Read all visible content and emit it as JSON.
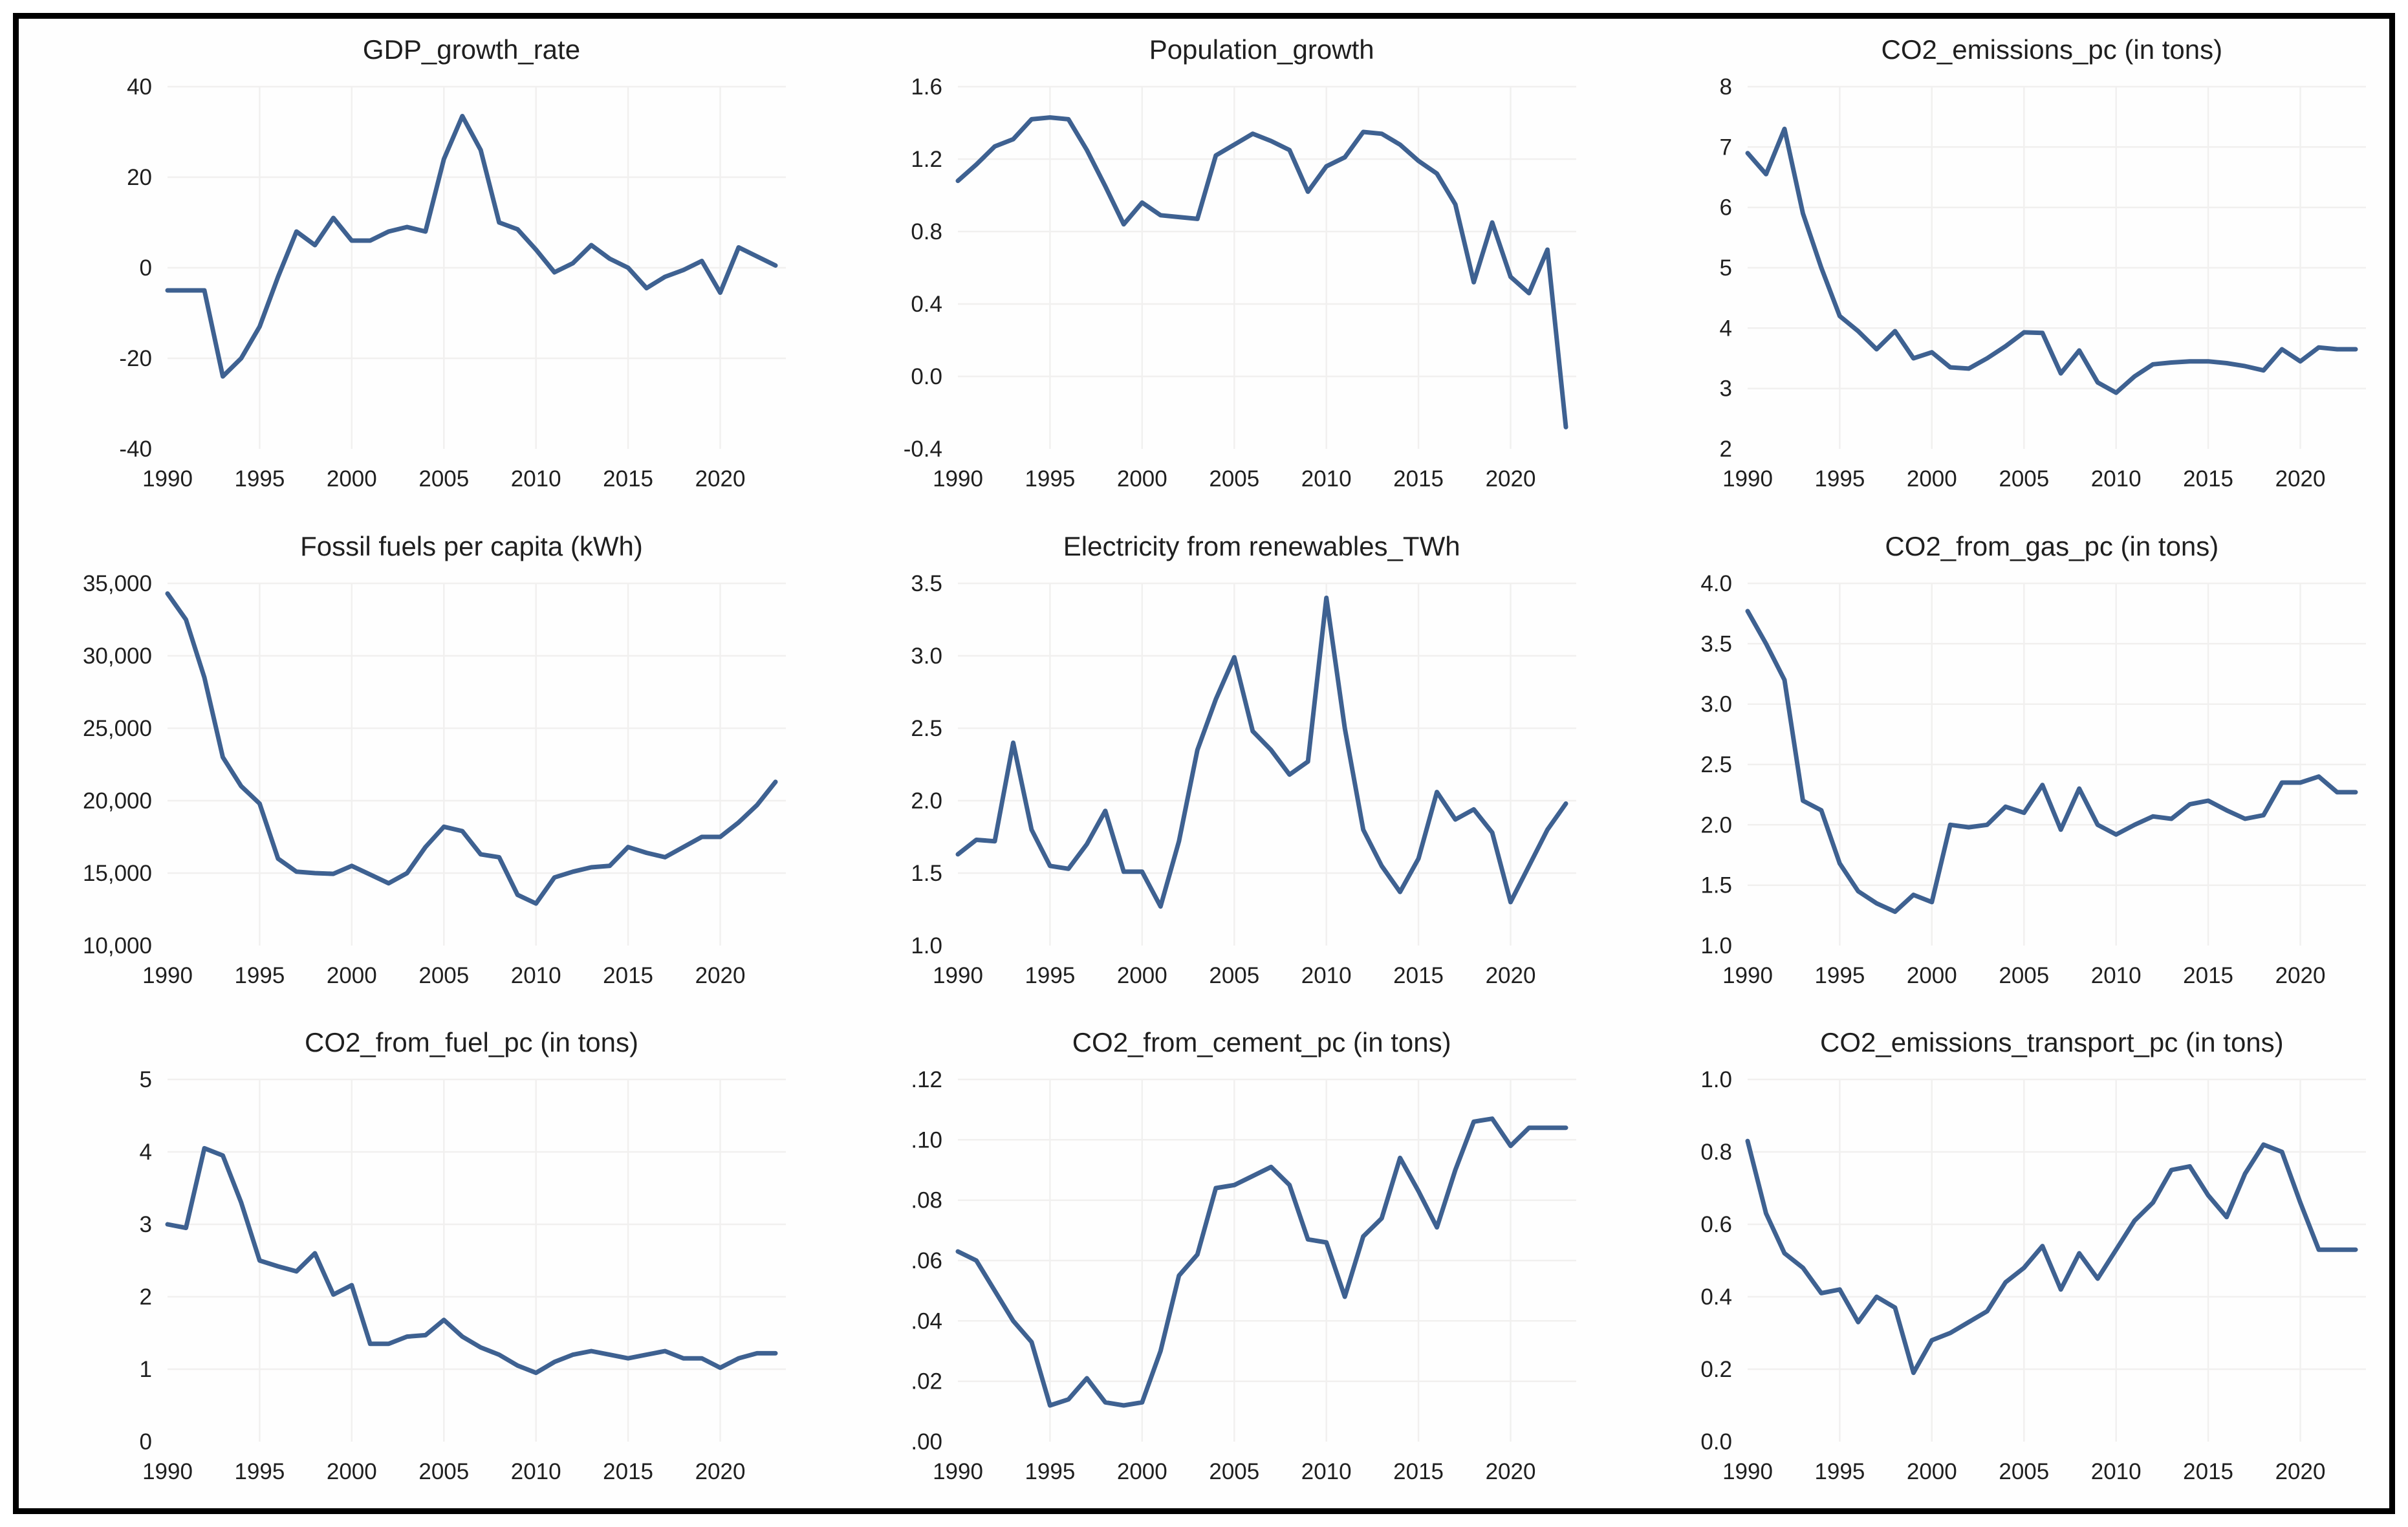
{
  "figure": {
    "background": "#fefefe",
    "frame_border_color": "#000000",
    "line_color": "#3e6191",
    "grid_color": "#f1f0ef",
    "text_color": "#1f1f1f",
    "layout": "3x3 small multiples, line charts, no legend, no axis lines"
  },
  "years": [
    1990,
    1991,
    1992,
    1993,
    1994,
    1995,
    1996,
    1997,
    1998,
    1999,
    2000,
    2001,
    2002,
    2003,
    2004,
    2005,
    2006,
    2007,
    2008,
    2009,
    2010,
    2011,
    2012,
    2013,
    2014,
    2015,
    2016,
    2017,
    2018,
    2019,
    2020,
    2021,
    2022,
    2023
  ],
  "x_ticks": [
    1990,
    1995,
    2000,
    2005,
    2010,
    2015,
    2020
  ],
  "chart_data": [
    {
      "type": "line",
      "title": "GDP_growth_rate",
      "ylim": [
        -40,
        40
      ],
      "yticks": [
        {
          "v": -40,
          "label": "-40"
        },
        {
          "v": -20,
          "label": "-20"
        },
        {
          "v": 0,
          "label": "0"
        },
        {
          "v": 20,
          "label": "20"
        },
        {
          "v": 40,
          "label": "40"
        }
      ],
      "values": [
        -5,
        -5,
        -5,
        -24,
        -20,
        -13,
        -2,
        8,
        5,
        11,
        6,
        6,
        8,
        9,
        8,
        24,
        33.5,
        26,
        10,
        8.5,
        4,
        -1,
        1,
        5,
        2,
        0,
        -4.5,
        -2,
        -0.5,
        1.5,
        -5.5,
        4.5,
        2.5,
        0.5
      ]
    },
    {
      "type": "line",
      "title": "Population_growth",
      "ylim": [
        -0.4,
        1.6
      ],
      "yticks": [
        {
          "v": -0.4,
          "label": "-0.4"
        },
        {
          "v": 0.0,
          "label": "0.0"
        },
        {
          "v": 0.4,
          "label": "0.4"
        },
        {
          "v": 0.8,
          "label": "0.8"
        },
        {
          "v": 1.2,
          "label": "1.2"
        },
        {
          "v": 1.6,
          "label": "1.6"
        }
      ],
      "values": [
        1.08,
        1.17,
        1.27,
        1.31,
        1.42,
        1.43,
        1.42,
        1.25,
        1.05,
        0.84,
        0.96,
        0.89,
        0.88,
        0.87,
        1.22,
        1.28,
        1.34,
        1.3,
        1.25,
        1.02,
        1.16,
        1.21,
        1.35,
        1.34,
        1.28,
        1.19,
        1.12,
        0.95,
        0.52,
        0.85,
        0.55,
        0.46,
        0.7,
        -0.28
      ]
    },
    {
      "type": "line",
      "title": "CO2_emissions_pc (in tons)",
      "ylim": [
        2,
        8
      ],
      "yticks": [
        {
          "v": 2,
          "label": "2"
        },
        {
          "v": 3,
          "label": "3"
        },
        {
          "v": 4,
          "label": "4"
        },
        {
          "v": 5,
          "label": "5"
        },
        {
          "v": 6,
          "label": "6"
        },
        {
          "v": 7,
          "label": "7"
        },
        {
          "v": 8,
          "label": "8"
        }
      ],
      "values": [
        6.9,
        6.55,
        7.3,
        5.9,
        5.0,
        4.2,
        3.95,
        3.65,
        3.95,
        3.5,
        3.6,
        3.35,
        3.33,
        3.5,
        3.7,
        3.93,
        3.92,
        3.25,
        3.63,
        3.1,
        2.93,
        3.2,
        3.4,
        3.43,
        3.45,
        3.45,
        3.42,
        3.37,
        3.3,
        3.65,
        3.45,
        3.68,
        3.65,
        3.65
      ]
    },
    {
      "type": "line",
      "title": "Fossil fuels per capita (kWh)",
      "ylim": [
        10000,
        35000
      ],
      "yticks": [
        {
          "v": 10000,
          "label": "10,000"
        },
        {
          "v": 15000,
          "label": "15,000"
        },
        {
          "v": 20000,
          "label": "20,000"
        },
        {
          "v": 25000,
          "label": "25,000"
        },
        {
          "v": 30000,
          "label": "30,000"
        },
        {
          "v": 35000,
          "label": "35,000"
        }
      ],
      "values": [
        34300,
        32500,
        28500,
        23000,
        21000,
        19800,
        16000,
        15100,
        15000,
        14950,
        15500,
        14900,
        14300,
        15000,
        16800,
        18200,
        17900,
        16300,
        16100,
        13500,
        12900,
        14700,
        15100,
        15400,
        15500,
        16800,
        16400,
        16100,
        16800,
        17500,
        17500,
        18500,
        19700,
        21300
      ]
    },
    {
      "type": "line",
      "title": "Electricity from renewables_TWh",
      "ylim": [
        1.0,
        3.5
      ],
      "yticks": [
        {
          "v": 1.0,
          "label": "1.0"
        },
        {
          "v": 1.5,
          "label": "1.5"
        },
        {
          "v": 2.0,
          "label": "2.0"
        },
        {
          "v": 2.5,
          "label": "2.5"
        },
        {
          "v": 3.0,
          "label": "3.0"
        },
        {
          "v": 3.5,
          "label": "3.5"
        }
      ],
      "values": [
        1.63,
        1.73,
        1.72,
        2.4,
        1.8,
        1.55,
        1.53,
        1.7,
        1.93,
        1.51,
        1.51,
        1.27,
        1.72,
        2.35,
        2.7,
        2.99,
        2.48,
        2.35,
        2.18,
        2.27,
        3.4,
        2.5,
        1.8,
        1.55,
        1.37,
        1.6,
        2.06,
        1.87,
        1.94,
        1.78,
        1.3,
        1.55,
        1.8,
        1.98
      ]
    },
    {
      "type": "line",
      "title": "CO2_from_gas_pc (in tons)",
      "ylim": [
        1.0,
        4.0
      ],
      "yticks": [
        {
          "v": 1.0,
          "label": "1.0"
        },
        {
          "v": 1.5,
          "label": "1.5"
        },
        {
          "v": 2.0,
          "label": "2.0"
        },
        {
          "v": 2.5,
          "label": "2.5"
        },
        {
          "v": 3.0,
          "label": "3.0"
        },
        {
          "v": 3.5,
          "label": "3.5"
        },
        {
          "v": 4.0,
          "label": "4.0"
        }
      ],
      "values": [
        3.77,
        3.5,
        3.2,
        2.2,
        2.12,
        1.68,
        1.45,
        1.35,
        1.28,
        1.42,
        1.36,
        2.0,
        1.98,
        2.0,
        2.15,
        2.1,
        2.33,
        1.96,
        2.3,
        2.0,
        1.92,
        2.0,
        2.07,
        2.05,
        2.17,
        2.2,
        2.12,
        2.05,
        2.08,
        2.35,
        2.35,
        2.4,
        2.27,
        2.27
      ]
    },
    {
      "type": "line",
      "title": "CO2_from_fuel_pc (in tons)",
      "ylim": [
        0,
        5
      ],
      "yticks": [
        {
          "v": 0,
          "label": "0"
        },
        {
          "v": 1,
          "label": "1"
        },
        {
          "v": 2,
          "label": "2"
        },
        {
          "v": 3,
          "label": "3"
        },
        {
          "v": 4,
          "label": "4"
        },
        {
          "v": 5,
          "label": "5"
        }
      ],
      "values": [
        3.0,
        2.95,
        4.05,
        3.95,
        3.3,
        2.5,
        2.42,
        2.35,
        2.6,
        2.03,
        2.16,
        1.35,
        1.35,
        1.45,
        1.47,
        1.68,
        1.45,
        1.3,
        1.2,
        1.05,
        0.95,
        1.1,
        1.2,
        1.25,
        1.2,
        1.15,
        1.2,
        1.25,
        1.15,
        1.15,
        1.02,
        1.15,
        1.22,
        1.22
      ]
    },
    {
      "type": "line",
      "title": "CO2_from_cement_pc (in tons)",
      "ylim": [
        0.0,
        0.12
      ],
      "yticks": [
        {
          "v": 0.0,
          "label": ".00"
        },
        {
          "v": 0.02,
          "label": ".02"
        },
        {
          "v": 0.04,
          "label": ".04"
        },
        {
          "v": 0.06,
          "label": ".06"
        },
        {
          "v": 0.08,
          "label": ".08"
        },
        {
          "v": 0.1,
          "label": ".10"
        },
        {
          "v": 0.12,
          "label": ".12"
        }
      ],
      "values": [
        0.063,
        0.06,
        0.05,
        0.04,
        0.033,
        0.012,
        0.014,
        0.021,
        0.013,
        0.012,
        0.013,
        0.03,
        0.055,
        0.062,
        0.084,
        0.085,
        0.088,
        0.091,
        0.085,
        0.067,
        0.066,
        0.048,
        0.068,
        0.074,
        0.094,
        0.083,
        0.071,
        0.09,
        0.106,
        0.107,
        0.098,
        0.104,
        0.104,
        0.104
      ]
    },
    {
      "type": "line",
      "title": "CO2_emissions_transport_pc (in tons)",
      "ylim": [
        0.0,
        1.0
      ],
      "yticks": [
        {
          "v": 0.0,
          "label": "0.0"
        },
        {
          "v": 0.2,
          "label": "0.2"
        },
        {
          "v": 0.4,
          "label": "0.4"
        },
        {
          "v": 0.6,
          "label": "0.6"
        },
        {
          "v": 0.8,
          "label": "0.8"
        },
        {
          "v": 1.0,
          "label": "1.0"
        }
      ],
      "values": [
        0.83,
        0.63,
        0.52,
        0.48,
        0.41,
        0.42,
        0.33,
        0.4,
        0.37,
        0.19,
        0.28,
        0.3,
        0.33,
        0.36,
        0.44,
        0.48,
        0.54,
        0.42,
        0.52,
        0.45,
        0.53,
        0.61,
        0.66,
        0.75,
        0.76,
        0.68,
        0.62,
        0.74,
        0.82,
        0.8,
        0.66,
        0.53,
        0.53,
        0.53
      ]
    }
  ]
}
